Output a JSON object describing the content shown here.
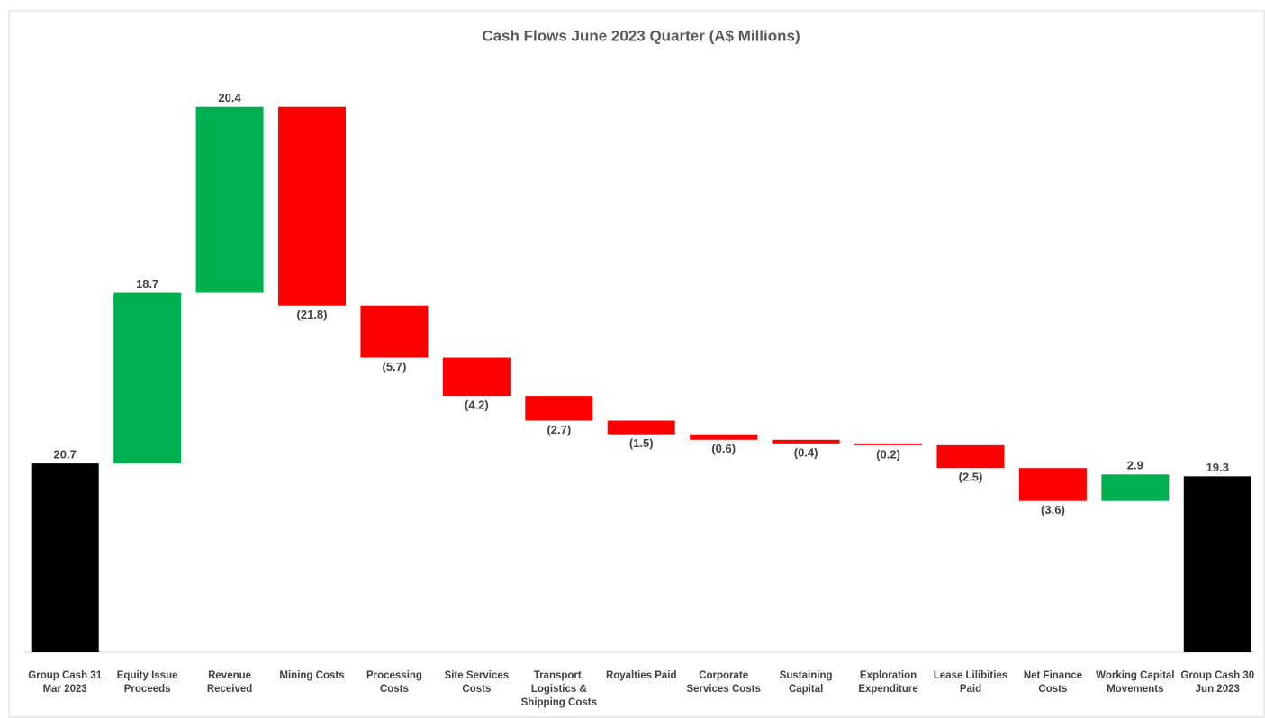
{
  "chart_data": {
    "type": "waterfall",
    "title": "Cash Flows June 2023 Quarter (A$ Millions)",
    "categories": [
      "Group Cash 31 Mar 2023",
      "Equity Issue Proceeds",
      "Revenue Received",
      "Mining Costs",
      "Processing Costs",
      "Site Services Costs",
      "Transport, Logistics & Shipping Costs",
      "Royalties Paid",
      "Corporate Services Costs",
      "Sustaining Capital",
      "Exploration Expenditure",
      "Lease Lilibities Paid",
      "Net Finance Costs",
      "Working Capital Movements",
      "Group Cash 30 Jun 2023"
    ],
    "values": [
      20.7,
      18.7,
      20.4,
      -21.8,
      -5.7,
      -4.2,
      -2.7,
      -1.5,
      -0.6,
      -0.4,
      -0.2,
      -2.5,
      -3.6,
      2.9,
      19.3
    ],
    "value_labels": [
      "20.7",
      "18.7",
      "20.4",
      "(21.8)",
      "(5.7)",
      "(4.2)",
      "(2.7)",
      "(1.5)",
      "(0.6)",
      "(0.4)",
      "(0.2)",
      "(2.5)",
      "(3.6)",
      "2.9",
      "19.3"
    ],
    "measure": [
      "total",
      "relative",
      "relative",
      "relative",
      "relative",
      "relative",
      "relative",
      "relative",
      "relative",
      "relative",
      "relative",
      "relative",
      "relative",
      "relative",
      "total"
    ],
    "colors": [
      "#000000",
      "#00b050",
      "#00b050",
      "#ff0000",
      "#ff0000",
      "#ff0000",
      "#ff0000",
      "#ff0000",
      "#ff0000",
      "#ff0000",
      "#ff0000",
      "#ff0000",
      "#ff0000",
      "#00b050",
      "#000000"
    ],
    "ylim": [
      0,
      65
    ]
  }
}
